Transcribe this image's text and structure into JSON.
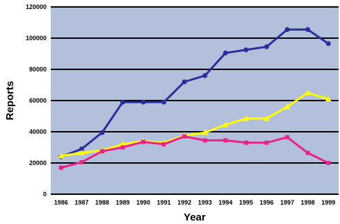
{
  "chart_data": {
    "type": "line",
    "title": "",
    "xlabel": "Year",
    "ylabel": "Reports",
    "x": [
      "1986",
      "1987",
      "1988",
      "1989",
      "1990",
      "1991",
      "1992",
      "1993",
      "1994",
      "1995",
      "1996",
      "1997",
      "1998",
      "1999"
    ],
    "ylim": [
      0,
      120000
    ],
    "yticks": [
      "0",
      "20000",
      "40000",
      "60000",
      "80000",
      "100000",
      "120000"
    ],
    "grid": true,
    "legend": "none",
    "plot_background": "#b2c0db",
    "series": [
      {
        "color": "#2a2d9a",
        "marker": "circle",
        "values": [
          24000,
          29000,
          39500,
          59000,
          59000,
          59000,
          72000,
          76000,
          90500,
          92500,
          94500,
          105500,
          105500,
          96500
        ]
      },
      {
        "color": "#ffff00",
        "marker": "triangle",
        "values": [
          24500,
          26500,
          28000,
          32000,
          34000,
          33000,
          37500,
          39500,
          44500,
          48500,
          48500,
          56000,
          65000,
          61000
        ]
      },
      {
        "color": "#e8228a",
        "marker": "square",
        "values": [
          17000,
          20500,
          27500,
          30000,
          33500,
          32000,
          37000,
          34500,
          34500,
          33000,
          33000,
          36500,
          26500,
          20000
        ]
      }
    ]
  }
}
